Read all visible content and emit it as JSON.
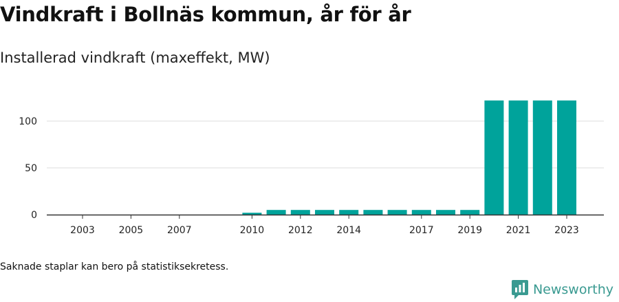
{
  "header": {
    "title": "Vindkraft i Bollnäs kommun, år för år",
    "subtitle": "Installerad vindkraft (maxeffekt, MW)"
  },
  "footer": {
    "note": "Saknade staplar kan bero på statistiksekretess.",
    "brand": "Newsworthy"
  },
  "colors": {
    "bar": "#00a39b",
    "grid": "#dddddd",
    "axis": "#333333",
    "brand": "#3a9a91"
  },
  "chart_data": {
    "type": "bar",
    "title": "Installerad vindkraft (maxeffekt, MW)",
    "xlabel": "",
    "ylabel": "",
    "categories": [
      "2003",
      "2004",
      "2005",
      "2006",
      "2007",
      "2008",
      "2009",
      "2010",
      "2011",
      "2012",
      "2013",
      "2014",
      "2015",
      "2016",
      "2017",
      "2018",
      "2019",
      "2020",
      "2021",
      "2022",
      "2023"
    ],
    "values": [
      null,
      null,
      null,
      null,
      null,
      null,
      null,
      2,
      5,
      5,
      5,
      5,
      5,
      5,
      5,
      5,
      5,
      122,
      122,
      122,
      122
    ],
    "tick_labels": [
      "2003",
      "2005",
      "2007",
      "2010",
      "2012",
      "2014",
      "2017",
      "2019",
      "2021",
      "2023"
    ],
    "yticks": [
      0,
      50,
      100
    ],
    "ylim": [
      0,
      130
    ],
    "grid": true
  }
}
